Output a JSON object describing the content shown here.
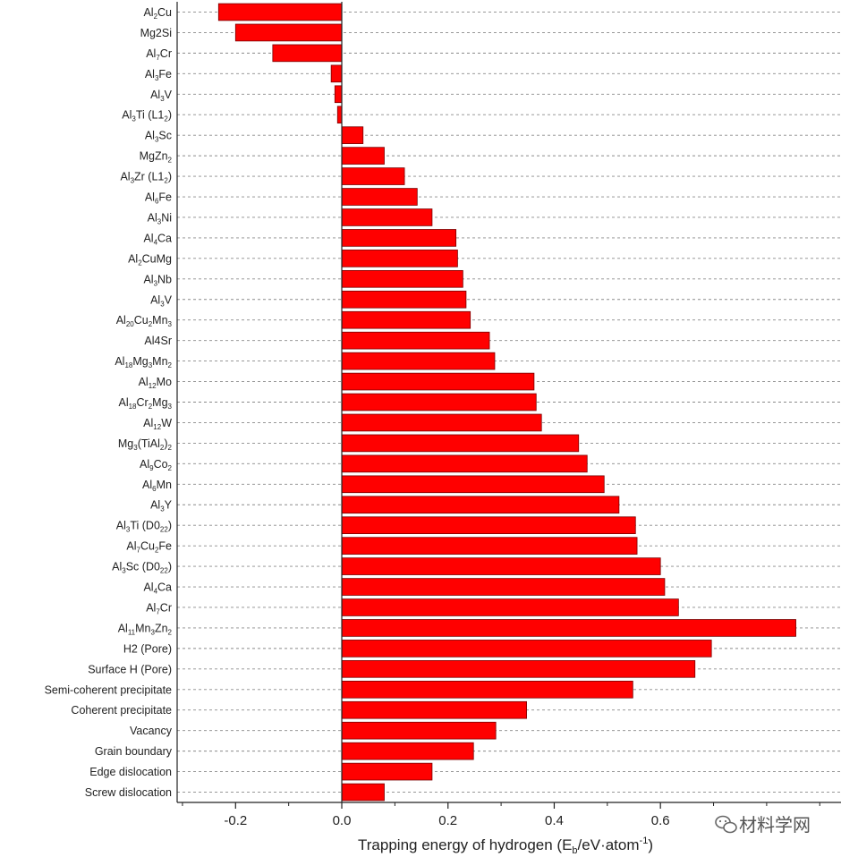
{
  "chart_data": {
    "type": "bar",
    "orientation": "horizontal",
    "title": "",
    "xlabel": "Trapping energy of hydrogen (Eb/eV·atom-1)",
    "xlabel_parts": {
      "pre": "Trapping energy of hydrogen (E",
      "sub": "b",
      "mid": "/eV·atom",
      "sup": "-1",
      "post": ")"
    },
    "xlim": [
      -0.31,
      0.94
    ],
    "xticks": [
      -0.2,
      0.0,
      0.2,
      0.4,
      0.6
    ],
    "xtick_labels": [
      "-0.2",
      "0.0",
      "0.2",
      "0.4",
      "0.6"
    ],
    "grid": "horizontal dashed",
    "bar_color": "#ff0000",
    "bar_edge_color": "#7a0000",
    "categories": [
      "Al2Cu",
      "Mg2Si",
      "Al7Cr",
      "Al3Fe",
      "Al3V",
      "Al3Ti (L12)",
      "Al3Sc",
      "MgZn2",
      "Al3Zr (L12)",
      "Al6Fe",
      "Al3Ni",
      "Al4Ca",
      "Al2CuMg",
      "Al3Nb",
      "Al3V",
      "Al20Cu2Mn3",
      "Al4Sr",
      "Al18Mg3Mn2",
      "Al12Mo",
      "Al18Cr2Mg3",
      "Al12W",
      "Mg3(TiAl2)2",
      "Al9Co2",
      "Al6Mn",
      "Al3Y",
      "Al3Ti (D022)",
      "Al7Cu2Fe",
      "Al3Sc (D022)",
      "Al4Ca",
      "Al7Cr",
      "Al11Mn3Zn2",
      "H2 (Pore)",
      "Surface H (Pore)",
      "Semi-coherent precipitate",
      "Coherent precipitate",
      "Vacancy",
      "Grain boundary",
      "Edge dislocation",
      "Screw dislocation"
    ],
    "values": [
      -0.232,
      -0.2,
      -0.13,
      -0.02,
      -0.013,
      -0.008,
      0.04,
      0.08,
      0.118,
      0.142,
      0.17,
      0.215,
      0.218,
      0.228,
      0.234,
      0.242,
      0.278,
      0.288,
      0.362,
      0.366,
      0.376,
      0.446,
      0.462,
      0.494,
      0.522,
      0.553,
      0.556,
      0.6,
      0.608,
      0.634,
      0.855,
      0.696,
      0.665,
      0.548,
      0.348,
      0.29,
      0.248,
      0.17,
      0.08
    ]
  },
  "category_label_parts": [
    [
      [
        "Al",
        ""
      ],
      [
        "2",
        "sub"
      ],
      [
        "Cu",
        ""
      ]
    ],
    [
      [
        "Mg2Si",
        ""
      ]
    ],
    [
      [
        "Al",
        ""
      ],
      [
        "7",
        "sub"
      ],
      [
        "Cr",
        ""
      ]
    ],
    [
      [
        "Al",
        ""
      ],
      [
        "3",
        "sub"
      ],
      [
        "Fe",
        ""
      ]
    ],
    [
      [
        "Al",
        ""
      ],
      [
        "3",
        "sub"
      ],
      [
        "V",
        ""
      ]
    ],
    [
      [
        "Al",
        ""
      ],
      [
        "3",
        "sub"
      ],
      [
        "Ti (L1",
        ""
      ],
      [
        "2",
        "sub"
      ],
      [
        ")",
        ""
      ]
    ],
    [
      [
        "Al",
        ""
      ],
      [
        "3",
        "sub"
      ],
      [
        "Sc",
        ""
      ]
    ],
    [
      [
        "MgZn",
        ""
      ],
      [
        "2",
        "sub"
      ]
    ],
    [
      [
        "Al",
        ""
      ],
      [
        "3",
        "sub"
      ],
      [
        "Zr (L1",
        ""
      ],
      [
        "2",
        "sub"
      ],
      [
        ")",
        ""
      ]
    ],
    [
      [
        "Al",
        ""
      ],
      [
        "6",
        "sub"
      ],
      [
        "Fe",
        ""
      ]
    ],
    [
      [
        "Al",
        ""
      ],
      [
        "3",
        "sub"
      ],
      [
        "Ni",
        ""
      ]
    ],
    [
      [
        "Al",
        ""
      ],
      [
        "4",
        "sub"
      ],
      [
        "Ca",
        ""
      ]
    ],
    [
      [
        "Al",
        ""
      ],
      [
        "2",
        "sub"
      ],
      [
        "CuMg",
        ""
      ]
    ],
    [
      [
        "Al",
        ""
      ],
      [
        "3",
        "sub"
      ],
      [
        "Nb",
        ""
      ]
    ],
    [
      [
        "Al",
        ""
      ],
      [
        "3",
        "sub"
      ],
      [
        "V",
        ""
      ]
    ],
    [
      [
        "Al",
        ""
      ],
      [
        "20",
        "sub"
      ],
      [
        "Cu",
        ""
      ],
      [
        "2",
        "sub"
      ],
      [
        "Mn",
        ""
      ],
      [
        "3",
        "sub"
      ]
    ],
    [
      [
        "Al4Sr",
        ""
      ]
    ],
    [
      [
        "Al",
        ""
      ],
      [
        "18",
        "sub"
      ],
      [
        "Mg",
        ""
      ],
      [
        "3",
        "sub"
      ],
      [
        "Mn",
        ""
      ],
      [
        "2",
        "sub"
      ]
    ],
    [
      [
        "Al",
        ""
      ],
      [
        "12",
        "sub"
      ],
      [
        "Mo",
        ""
      ]
    ],
    [
      [
        "Al",
        ""
      ],
      [
        "18",
        "sub"
      ],
      [
        "Cr",
        ""
      ],
      [
        "2",
        "sub"
      ],
      [
        "Mg",
        ""
      ],
      [
        "3",
        "sub"
      ]
    ],
    [
      [
        "Al",
        ""
      ],
      [
        "12",
        "sub"
      ],
      [
        "W",
        ""
      ]
    ],
    [
      [
        "Mg",
        ""
      ],
      [
        "3",
        "sub"
      ],
      [
        "(TiAl",
        ""
      ],
      [
        "2",
        "sub"
      ],
      [
        ")",
        ""
      ],
      [
        "2",
        "sub"
      ]
    ],
    [
      [
        "Al",
        ""
      ],
      [
        "9",
        "sub"
      ],
      [
        "Co",
        ""
      ],
      [
        "2",
        "sub"
      ]
    ],
    [
      [
        "Al",
        ""
      ],
      [
        "6",
        "sub"
      ],
      [
        "Mn",
        ""
      ]
    ],
    [
      [
        "Al",
        ""
      ],
      [
        "3",
        "sub"
      ],
      [
        "Y",
        ""
      ]
    ],
    [
      [
        "Al",
        ""
      ],
      [
        "3",
        "sub"
      ],
      [
        "Ti (D0",
        ""
      ],
      [
        "22",
        "sub"
      ],
      [
        ")",
        ""
      ]
    ],
    [
      [
        "Al",
        ""
      ],
      [
        "7",
        "sub"
      ],
      [
        "Cu",
        ""
      ],
      [
        "2",
        "sub"
      ],
      [
        "Fe",
        ""
      ]
    ],
    [
      [
        "Al",
        ""
      ],
      [
        "3",
        "sub"
      ],
      [
        "Sc (D0",
        ""
      ],
      [
        "22",
        "sub"
      ],
      [
        ")",
        ""
      ]
    ],
    [
      [
        "Al",
        ""
      ],
      [
        "4",
        "sub"
      ],
      [
        "Ca",
        ""
      ]
    ],
    [
      [
        "Al",
        ""
      ],
      [
        "7",
        "sub"
      ],
      [
        "Cr",
        ""
      ]
    ],
    [
      [
        "Al",
        ""
      ],
      [
        "11",
        "sub"
      ],
      [
        "Mn",
        ""
      ],
      [
        "3",
        "sub"
      ],
      [
        "Zn",
        ""
      ],
      [
        "2",
        "sub"
      ]
    ],
    [
      [
        "H2 (Pore)",
        ""
      ]
    ],
    [
      [
        "Surface H (Pore)",
        ""
      ]
    ],
    [
      [
        "Semi-coherent precipitate",
        ""
      ]
    ],
    [
      [
        "Coherent precipitate",
        ""
      ]
    ],
    [
      [
        "Vacancy",
        ""
      ]
    ],
    [
      [
        "Grain boundary",
        ""
      ]
    ],
    [
      [
        "Edge dislocation",
        ""
      ]
    ],
    [
      [
        "Screw dislocation",
        ""
      ]
    ]
  ],
  "watermark": {
    "text": "材料学网",
    "icon": "wechat-icon"
  }
}
